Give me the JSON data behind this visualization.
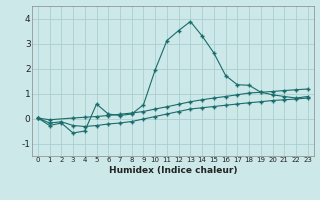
{
  "xlabel": "Humidex (Indice chaleur)",
  "xlim": [
    -0.5,
    23.5
  ],
  "ylim": [
    -1.5,
    4.5
  ],
  "yticks": [
    -1,
    0,
    1,
    2,
    3,
    4
  ],
  "xticks": [
    0,
    1,
    2,
    3,
    4,
    5,
    6,
    7,
    8,
    9,
    10,
    11,
    12,
    13,
    14,
    15,
    16,
    17,
    18,
    19,
    20,
    21,
    22,
    23
  ],
  "xtick_labels": [
    "0",
    "1",
    "2",
    "3",
    "4",
    "5",
    "6",
    "7",
    "8",
    "9",
    "10",
    "11",
    "12",
    "13",
    "14",
    "15",
    "16",
    "17",
    "18",
    "19",
    "20",
    "21",
    "22",
    "23"
  ],
  "bg_color": "#cce8e8",
  "line_color": "#1a6b6b",
  "grid_color": "#aacece",
  "line1_x": [
    0,
    1,
    2,
    3,
    4,
    5,
    6,
    7,
    8,
    9,
    10,
    11,
    12,
    13,
    14,
    15,
    16,
    17,
    18,
    19,
    20,
    21,
    22,
    23
  ],
  "line1_y": [
    0.02,
    -0.28,
    -0.18,
    -0.58,
    -0.5,
    0.58,
    0.18,
    0.12,
    0.18,
    0.55,
    1.95,
    3.12,
    3.52,
    3.88,
    3.3,
    2.62,
    1.72,
    1.35,
    1.33,
    1.05,
    0.95,
    0.88,
    0.82,
    0.88
  ],
  "line2_x": [
    0,
    1,
    3,
    4,
    5,
    6,
    7,
    8,
    9,
    10,
    11,
    12,
    13,
    14,
    15,
    16,
    17,
    18,
    19,
    20,
    21,
    22,
    23
  ],
  "line2_y": [
    0.02,
    -0.05,
    0.02,
    0.05,
    0.08,
    0.12,
    0.17,
    0.22,
    0.28,
    0.38,
    0.47,
    0.57,
    0.67,
    0.75,
    0.82,
    0.88,
    0.95,
    1.02,
    1.05,
    1.08,
    1.12,
    1.15,
    1.18
  ],
  "line3_x": [
    0,
    1,
    2,
    3,
    4,
    5,
    6,
    7,
    8,
    9,
    10,
    11,
    12,
    13,
    14,
    15,
    16,
    17,
    18,
    19,
    20,
    21,
    22,
    23
  ],
  "line3_y": [
    0.02,
    -0.18,
    -0.13,
    -0.28,
    -0.32,
    -0.28,
    -0.22,
    -0.18,
    -0.12,
    -0.02,
    0.08,
    0.18,
    0.28,
    0.38,
    0.43,
    0.48,
    0.53,
    0.58,
    0.63,
    0.67,
    0.72,
    0.75,
    0.78,
    0.82
  ]
}
